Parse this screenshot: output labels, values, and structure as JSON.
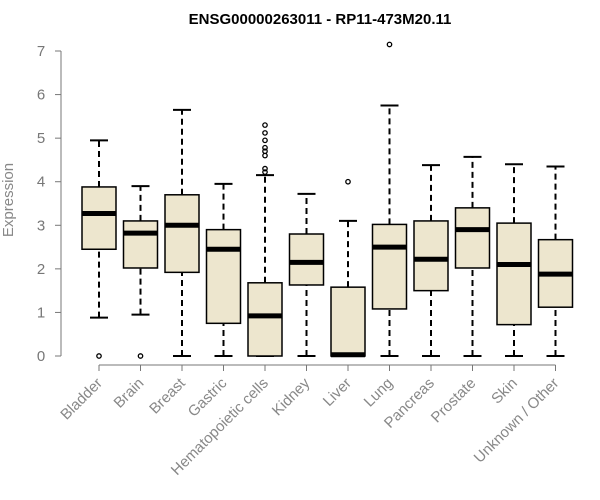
{
  "chart_data": {
    "type": "box",
    "title": "ENSG00000263011 - RP11-473M20.11",
    "ylabel": "Expression",
    "xlabel": "",
    "ylim": [
      0,
      7.2
    ],
    "yticks": [
      0,
      1,
      2,
      3,
      4,
      5,
      6,
      7
    ],
    "box_fill": "#ede6ce",
    "categories": [
      "Bladder",
      "Brain",
      "Breast",
      "Gastric",
      "Hematopoietic cells",
      "Kidney",
      "Liver",
      "Lung",
      "Pancreas",
      "Prostate",
      "Skin",
      "Unknown / Other"
    ],
    "boxes": [
      {
        "whisker_low": 0.88,
        "q1": 2.45,
        "median": 3.27,
        "q3": 3.88,
        "whisker_high": 4.95,
        "outliers": [
          0.0
        ]
      },
      {
        "whisker_low": 0.95,
        "q1": 2.02,
        "median": 2.82,
        "q3": 3.1,
        "whisker_high": 3.9,
        "outliers": [
          0.0
        ]
      },
      {
        "whisker_low": 0.0,
        "q1": 1.92,
        "median": 3.0,
        "q3": 3.7,
        "whisker_high": 5.65,
        "outliers": []
      },
      {
        "whisker_low": 0.0,
        "q1": 0.75,
        "median": 2.45,
        "q3": 2.9,
        "whisker_high": 3.95,
        "outliers": []
      },
      {
        "whisker_low": 0.0,
        "q1": 0.0,
        "median": 0.92,
        "q3": 1.68,
        "whisker_high": 4.15,
        "outliers": [
          4.22,
          4.3,
          4.6,
          4.7,
          4.78,
          4.95,
          5.12,
          5.3
        ]
      },
      {
        "whisker_low": 0.0,
        "q1": 1.63,
        "median": 2.15,
        "q3": 2.8,
        "whisker_high": 3.72,
        "outliers": []
      },
      {
        "whisker_low": 0.0,
        "q1": 0.0,
        "median": 0.03,
        "q3": 1.58,
        "whisker_high": 3.1,
        "outliers": [
          4.0
        ]
      },
      {
        "whisker_low": 0.0,
        "q1": 1.08,
        "median": 2.5,
        "q3": 3.02,
        "whisker_high": 5.75,
        "outliers": [
          7.15
        ]
      },
      {
        "whisker_low": 0.0,
        "q1": 1.5,
        "median": 2.22,
        "q3": 3.1,
        "whisker_high": 4.38,
        "outliers": []
      },
      {
        "whisker_low": 0.0,
        "q1": 2.02,
        "median": 2.9,
        "q3": 3.4,
        "whisker_high": 4.57,
        "outliers": []
      },
      {
        "whisker_low": 0.0,
        "q1": 0.72,
        "median": 2.1,
        "q3": 3.05,
        "whisker_high": 4.4,
        "outliers": []
      },
      {
        "whisker_low": 0.0,
        "q1": 1.12,
        "median": 1.88,
        "q3": 2.67,
        "whisker_high": 4.35,
        "outliers": []
      }
    ]
  }
}
